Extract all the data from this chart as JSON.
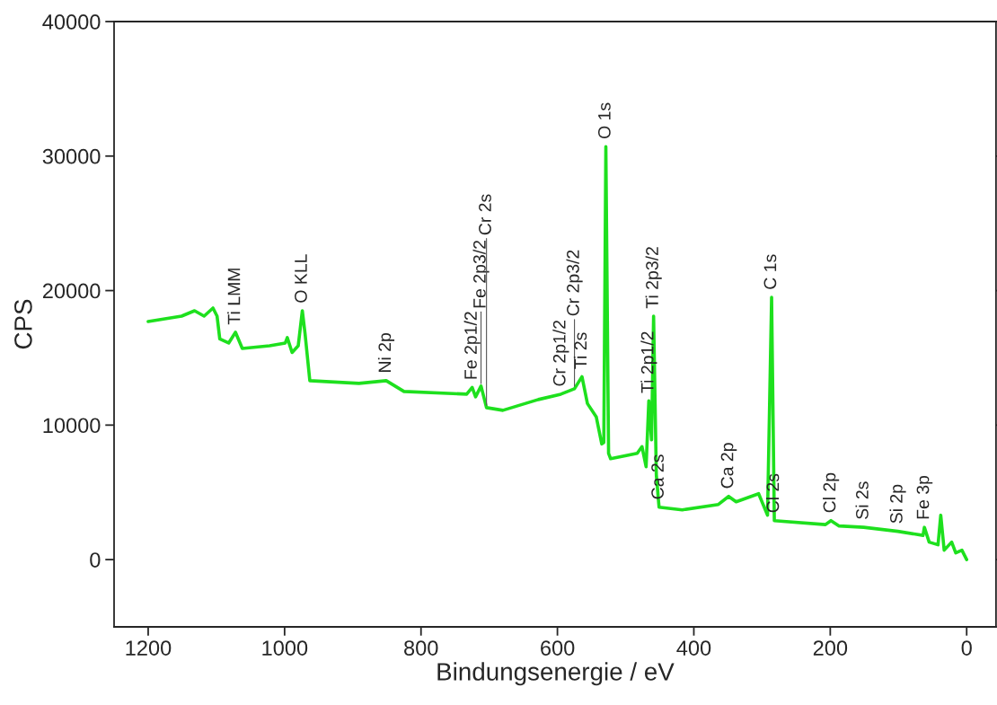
{
  "chart_data": {
    "type": "line",
    "xlabel": "Bindungsenergie / eV",
    "ylabel": "CPS",
    "xlim": [
      1250,
      -43
    ],
    "ylim": [
      -5000,
      40000
    ],
    "xticks": [
      1200,
      1000,
      800,
      600,
      400,
      200,
      0
    ],
    "yticks": [
      0,
      10000,
      20000,
      30000,
      40000
    ],
    "grid": false,
    "legend": false,
    "marker": "none",
    "line_style": "solid",
    "series": [
      {
        "color": "#1ee01e",
        "x": [
          1200,
          1151,
          1132,
          1118,
          1105,
          1099,
          1095,
          1082,
          1072,
          1062,
          1022,
          999,
          996,
          989,
          980,
          974,
          970,
          963,
          891,
          851,
          825,
          733,
          725,
          720,
          712,
          704,
          680,
          628,
          595,
          575,
          564,
          556,
          543,
          535,
          532,
          529,
          525,
          522,
          483,
          476,
          470,
          466,
          462,
          459,
          455,
          451,
          417,
          364,
          349,
          338,
          305,
          292,
          286,
          282,
          207,
          199,
          187,
          151,
          101,
          64,
          62,
          55,
          42,
          38,
          33,
          22,
          16,
          7,
          0
        ],
        "values": [
          17700,
          18100,
          18500,
          18100,
          18700,
          18100,
          16400,
          16100,
          16900,
          15700,
          15900,
          16100,
          16500,
          15400,
          15900,
          18500,
          16800,
          13300,
          13100,
          13300,
          12500,
          12300,
          12800,
          12100,
          12900,
          11300,
          11100,
          11900,
          12300,
          12700,
          13600,
          11600,
          10600,
          8600,
          8700,
          30700,
          7900,
          7500,
          7900,
          8400,
          6900,
          11800,
          8900,
          18100,
          6300,
          3900,
          3700,
          4100,
          4700,
          4300,
          4900,
          3300,
          19500,
          2900,
          2600,
          2900,
          2500,
          2400,
          2100,
          1800,
          2400,
          1300,
          1100,
          3300,
          700,
          1300,
          500,
          700,
          0
        ]
      }
    ],
    "annotations": [
      {
        "text": "Ti LMM",
        "x": 1072,
        "y": 16900
      },
      {
        "text": "O KLL",
        "x": 974,
        "y": 18500
      },
      {
        "text": "Ni 2p",
        "x": 851,
        "y": 13300
      },
      {
        "text": "Fe 2p1/2",
        "x": 725,
        "y": 12800
      },
      {
        "text": "Fe 2p3/2",
        "x": 712,
        "y": 12900
      },
      {
        "text": "Cr 2s",
        "x": 704,
        "y": 11300
      },
      {
        "text": "Cr 2p1/2",
        "x": 595,
        "y": 12300
      },
      {
        "text": "Cr 2p3/2",
        "x": 575,
        "y": 12700
      },
      {
        "text": "Ti 2s",
        "x": 564,
        "y": 13600
      },
      {
        "text": "O 1s",
        "x": 529,
        "y": 30700
      },
      {
        "text": "Ti 2p1/2",
        "x": 466,
        "y": 11800
      },
      {
        "text": "Ti 2p3/2",
        "x": 459,
        "y": 18100
      },
      {
        "text": "Ca 2s",
        "x": 451,
        "y": 3900
      },
      {
        "text": "Ca 2p",
        "x": 349,
        "y": 4700
      },
      {
        "text": "C 1s",
        "x": 286,
        "y": 19500
      },
      {
        "text": "Cl 2s",
        "x": 282,
        "y": 2900
      },
      {
        "text": "Cl 2p",
        "x": 199,
        "y": 2900
      },
      {
        "text": "Si 2s",
        "x": 151,
        "y": 2400
      },
      {
        "text": "Si 2p",
        "x": 101,
        "y": 2100
      },
      {
        "text": "Fe 3p",
        "x": 62,
        "y": 2400
      }
    ]
  }
}
